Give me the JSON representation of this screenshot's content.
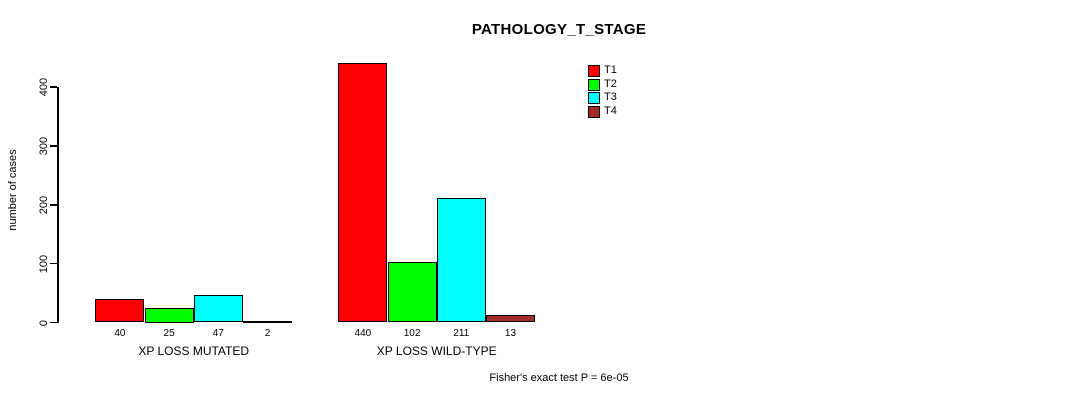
{
  "page": {
    "background": "#ffffff"
  },
  "chart_data": {
    "type": "bar",
    "title": "PATHOLOGY_T_STAGE",
    "xlabel": "",
    "ylabel": "number of cases",
    "groups": [
      "XP LOSS MUTATED",
      "XP LOSS WILD-TYPE"
    ],
    "series": [
      {
        "name": "T1",
        "color": "#ff0000",
        "values": [
          40,
          440
        ]
      },
      {
        "name": "T2",
        "color": "#00ff00",
        "values": [
          25,
          102
        ]
      },
      {
        "name": "T3",
        "color": "#00ffff",
        "values": [
          47,
          211
        ]
      },
      {
        "name": "T4",
        "color": "#a52a2a",
        "values": [
          2,
          13
        ]
      }
    ],
    "bar_value_labels": [
      [
        40,
        25,
        47,
        2
      ],
      [
        440,
        102,
        211,
        13
      ]
    ],
    "yticks": [
      0,
      100,
      200,
      300,
      400
    ],
    "ylim": [
      0,
      440
    ],
    "grid": false,
    "legend_position": "top-right",
    "legend_entries": [
      "T1",
      "T2",
      "T3",
      "T4"
    ],
    "bar_border_color": "#000000",
    "annotation": "Fisher's exact test P = 6e-05"
  }
}
